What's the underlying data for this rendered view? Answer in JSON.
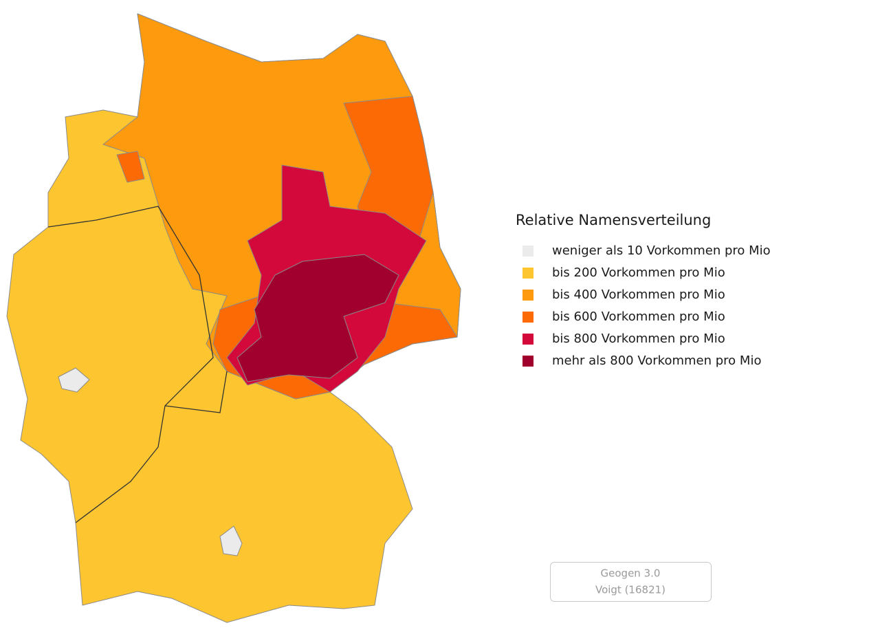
{
  "legend": {
    "title": "Relative Namensverteilung",
    "items": [
      {
        "label": "weniger als 10 Vorkommen pro Mio",
        "color": "#ebebeb"
      },
      {
        "label": "bis 200 Vorkommen pro Mio",
        "color": "#fdc530"
      },
      {
        "label": "bis 400 Vorkommen pro Mio",
        "color": "#fd9a0e"
      },
      {
        "label": "bis 600 Vorkommen pro Mio",
        "color": "#fc6a05"
      },
      {
        "label": "bis 800 Vorkommen pro Mio",
        "color": "#d4093b"
      },
      {
        "label": "mehr als 800 Vorkommen pro Mio",
        "color": "#a1002e"
      }
    ]
  },
  "footer": {
    "lines": [
      "Geogen 3.0",
      "Voigt (16821)"
    ]
  }
}
